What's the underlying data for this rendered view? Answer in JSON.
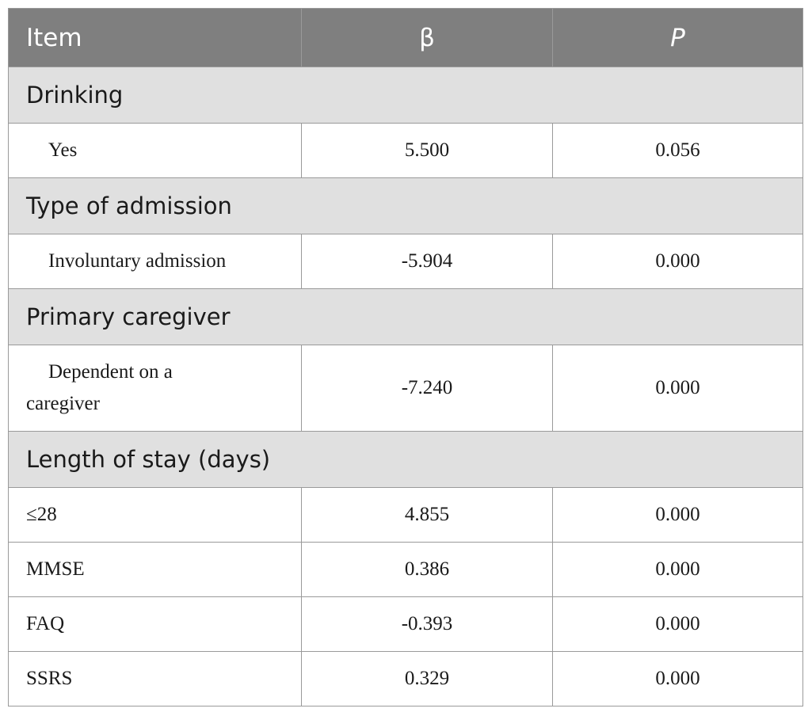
{
  "header": {
    "item": "Item",
    "beta": "β",
    "p": "P"
  },
  "sections": {
    "drinking": {
      "title": "Drinking",
      "rows": [
        {
          "label": "Yes",
          "beta": "5.500",
          "p": "0.056"
        }
      ]
    },
    "admission": {
      "title": "Type of admission",
      "rows": [
        {
          "label": "Involuntary admission",
          "beta": "-5.904",
          "p": "0.000"
        }
      ]
    },
    "caregiver": {
      "title": "Primary caregiver",
      "rows": [
        {
          "label": "Dependent on a caregiver",
          "beta": "-7.240",
          "p": "0.000"
        }
      ]
    },
    "stay": {
      "title": "Length of stay (days)",
      "rows": [
        {
          "label": "≤28",
          "beta": "4.855",
          "p": "0.000"
        },
        {
          "label": "MMSE",
          "beta": "0.386",
          "p": "0.000"
        },
        {
          "label": "FAQ",
          "beta": "-0.393",
          "p": "0.000"
        },
        {
          "label": "SSRS",
          "beta": "0.329",
          "p": "0.000"
        }
      ]
    }
  }
}
